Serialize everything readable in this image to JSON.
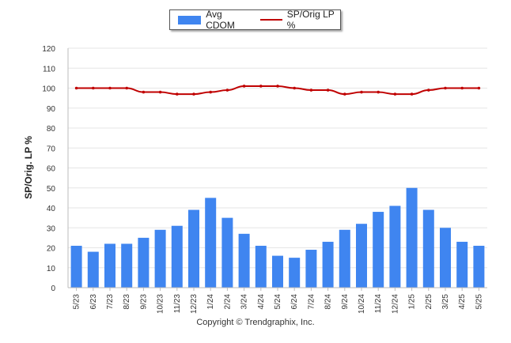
{
  "chart_data": {
    "type": "bar",
    "title": "",
    "xlabel": "",
    "ylabel": "SP/Orig. LP %",
    "ylim": [
      0,
      120
    ],
    "yticks": [
      0,
      10,
      20,
      30,
      40,
      50,
      60,
      70,
      80,
      90,
      100,
      110,
      120
    ],
    "grid": true,
    "legend_placement": "top-center",
    "categories": [
      "5/23",
      "6/23",
      "7/23",
      "8/23",
      "9/23",
      "10/23",
      "11/23",
      "12/23",
      "1/24",
      "2/24",
      "3/24",
      "4/24",
      "5/24",
      "6/24",
      "7/24",
      "8/24",
      "9/24",
      "10/24",
      "11/24",
      "12/24",
      "1/25",
      "2/25",
      "3/25",
      "4/25",
      "5/25"
    ],
    "series": [
      {
        "name": "Avg CDOM",
        "type": "bar",
        "color": "#3f85f0",
        "values": [
          21,
          18,
          22,
          22,
          25,
          29,
          31,
          39,
          45,
          35,
          27,
          21,
          16,
          15,
          19,
          23,
          29,
          32,
          38,
          41,
          50,
          39,
          30,
          23,
          21
        ]
      },
      {
        "name": "SP/Orig LP %",
        "type": "line",
        "color": "#c00000",
        "values": [
          100,
          100,
          100,
          100,
          98,
          98,
          97,
          97,
          98,
          99,
          101,
          101,
          101,
          100,
          99,
          99,
          97,
          98,
          98,
          97,
          97,
          99,
          100,
          100,
          100
        ]
      }
    ]
  },
  "footer": {
    "copyright": "Copyright © Trendgraphix, Inc."
  }
}
